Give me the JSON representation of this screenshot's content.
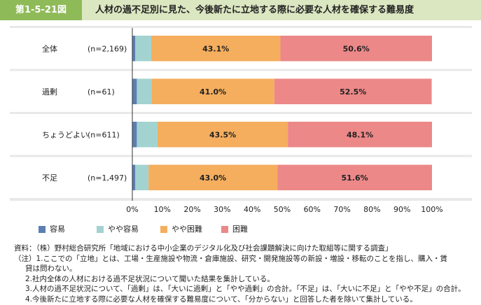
{
  "figure": {
    "label": "第1-5-21図",
    "title": "人材の過不足別に見た、今後新たに立地する際に必要な人材を確保する難易度"
  },
  "chart_data": {
    "type": "bar",
    "orientation": "horizontal",
    "stacked": true,
    "categories": [
      "全体",
      "過剰",
      "ちょうどよい",
      "不足"
    ],
    "sample_sizes": [
      "(n=2,169)",
      "(n=61)",
      "(n=611)",
      "(n=1,497)"
    ],
    "series": [
      {
        "name": "容易",
        "color": "#5b7fb3",
        "values": [
          1.0,
          1.5,
          1.5,
          1.0
        ]
      },
      {
        "name": "やや容易",
        "color": "#a2d3d0",
        "values": [
          5.3,
          4.9,
          6.9,
          4.4
        ]
      },
      {
        "name": "やや困難",
        "color": "#f5ae5e",
        "values": [
          43.1,
          41.0,
          43.5,
          43.0
        ]
      },
      {
        "name": "困難",
        "color": "#ec8888",
        "values": [
          50.6,
          52.5,
          48.1,
          51.6
        ]
      }
    ],
    "labels": {
      "やや困難": [
        "43.1%",
        "41.0%",
        "43.5%",
        "43.0%"
      ],
      "困難": [
        "50.6%",
        "52.5%",
        "48.1%",
        "51.6%"
      ]
    },
    "xlim": [
      0,
      100
    ],
    "xticks": [
      "0%",
      "10%",
      "20%",
      "30%",
      "40%",
      "50%",
      "60%",
      "70%",
      "80%",
      "90%",
      "100%"
    ],
    "legend_position": "bottom"
  },
  "notes": {
    "source": "資料：（株）野村総合研究所「地域における中小企業のデジタル化及び社会課題解決に向けた取組等に関する調査」",
    "note1a": "（注）1.ここでの「立地」とは、工場・生産施設や物流・倉庫施設、研究・開発施設等の新設・増設・移転のことを指し、購入・賃",
    "note1b": "貸は問わない。",
    "note2": "2.社内全体の人材における過不足状況について聞いた結果を集計している。",
    "note3": "3.人材の過不足状況について、「過剰」は、「大いに過剰」と「やや過剰」の合計。「不足」は、「大いに不足」と「やや不足」の合計。",
    "note4": "4.今後新たに立地する際に必要な人材を確保する難易度について、「分からない」と回答した者を除いて集計している。"
  }
}
